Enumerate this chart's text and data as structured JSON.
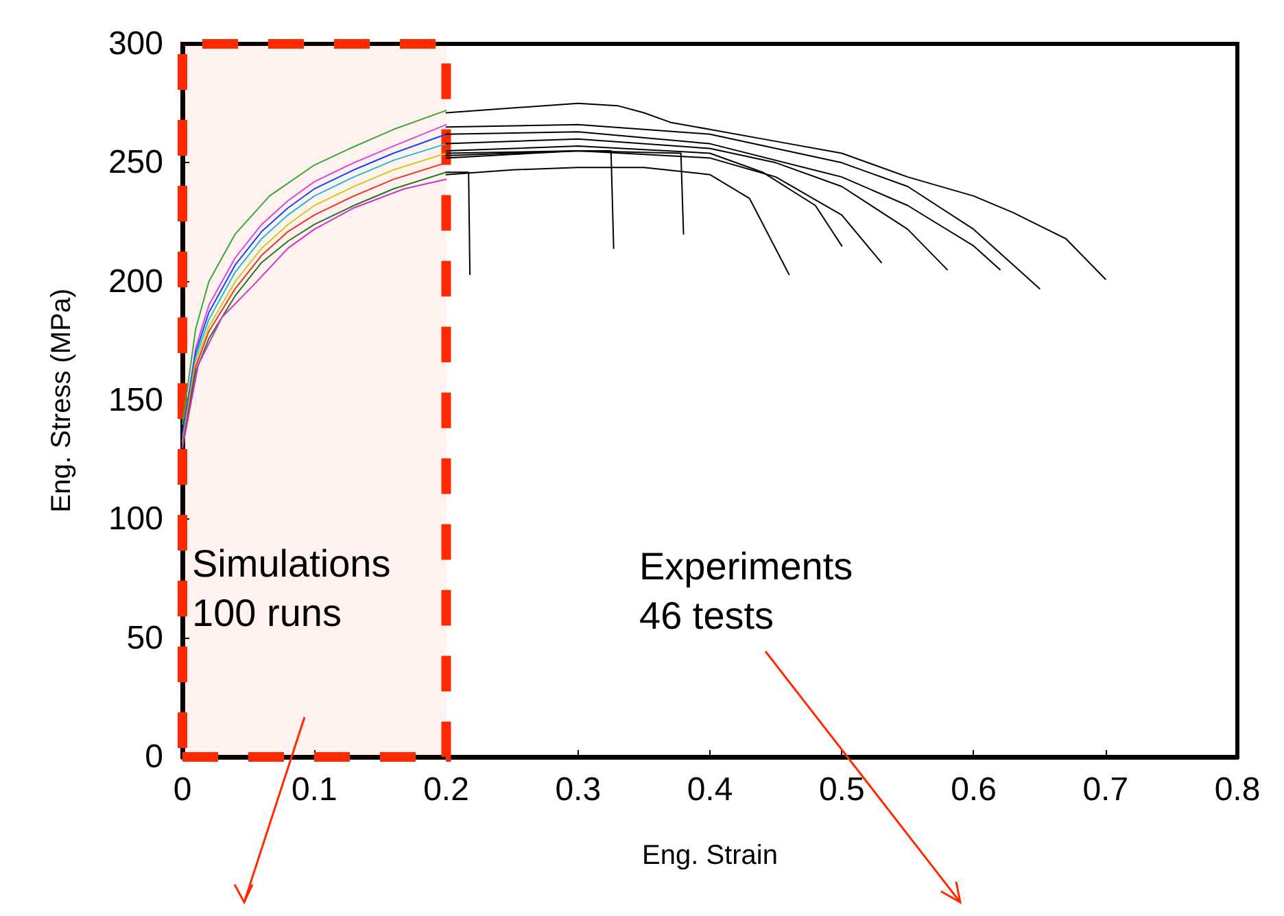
{
  "chart_data": {
    "type": "line",
    "xlabel": "Eng. Strain",
    "ylabel": "Eng. Stress (MPa)",
    "xlim": [
      0,
      0.8
    ],
    "xticks": [
      0,
      0.1,
      0.2,
      0.3,
      0.4,
      0.5,
      0.6,
      0.7,
      0.8
    ],
    "ylim": [
      0,
      300
    ],
    "yticks": [
      0,
      50,
      100,
      150,
      200,
      250,
      300
    ],
    "grid": false,
    "marker": "none",
    "line_style": "solid",
    "annotations": [
      "Simulations\n100 runs",
      "Experiments\n46 tests"
    ],
    "bands": [
      {
        "axis": "x",
        "from": 0,
        "to": 0.2,
        "color": "#ff2a00"
      }
    ],
    "series": [
      {
        "color": "#33aa33",
        "x": [
          0,
          0.01,
          0.02,
          0.04,
          0.066,
          0.1,
          0.127,
          0.16,
          0.2
        ],
        "values": [
          140,
          180,
          200,
          220,
          236,
          249,
          256,
          264,
          272
        ]
      },
      {
        "color": "#dd44dd",
        "x": [
          0,
          0.01,
          0.02,
          0.04,
          0.06,
          0.08,
          0.1,
          0.13,
          0.16,
          0.2
        ],
        "values": [
          135,
          172,
          190,
          210,
          224,
          234,
          242,
          250,
          257,
          266
        ]
      },
      {
        "color": "#1144ff",
        "x": [
          0,
          0.01,
          0.02,
          0.04,
          0.06,
          0.08,
          0.1,
          0.13,
          0.16,
          0.2
        ],
        "values": [
          135,
          170,
          187,
          207,
          221,
          231,
          239,
          247,
          254,
          262
        ]
      },
      {
        "color": "#22bbcc",
        "x": [
          0,
          0.01,
          0.02,
          0.04,
          0.06,
          0.08,
          0.1,
          0.13,
          0.16,
          0.2
        ],
        "values": [
          133,
          168,
          184,
          204,
          218,
          228,
          236,
          244,
          251,
          258
        ]
      },
      {
        "color": "#cccc22",
        "x": [
          0,
          0.01,
          0.02,
          0.04,
          0.06,
          0.08,
          0.1,
          0.13,
          0.16,
          0.2
        ],
        "values": [
          132,
          166,
          181,
          200,
          214,
          224,
          232,
          240,
          247,
          254
        ]
      },
      {
        "color": "#ee3322",
        "x": [
          0,
          0.01,
          0.02,
          0.04,
          0.06,
          0.08,
          0.1,
          0.13,
          0.16,
          0.2
        ],
        "values": [
          131,
          164,
          179,
          197,
          211,
          221,
          228,
          236,
          243,
          250
        ]
      },
      {
        "color": "#227722",
        "x": [
          0,
          0.01,
          0.02,
          0.04,
          0.06,
          0.08,
          0.1,
          0.13,
          0.16,
          0.2
        ],
        "values": [
          130,
          162,
          176,
          194,
          208,
          217,
          224,
          232,
          239,
          246
        ]
      },
      {
        "color": "#cc33cc",
        "x": [
          0,
          0.012,
          0.03,
          0.053,
          0.08,
          0.1,
          0.13,
          0.168,
          0.2
        ],
        "values": [
          130,
          165,
          185,
          198,
          214,
          222,
          231,
          239,
          243
        ]
      },
      {
        "color": "#000000",
        "x": [
          0.2,
          0.25,
          0.3,
          0.33,
          0.35,
          0.37,
          0.4,
          0.45,
          0.5,
          0.55,
          0.6,
          0.63,
          0.67,
          0.7
        ],
        "values": [
          271,
          273,
          275,
          274,
          271,
          267,
          264,
          259,
          254,
          244,
          236,
          229,
          218,
          201
        ]
      },
      {
        "color": "#000000",
        "x": [
          0.2,
          0.3,
          0.4,
          0.45,
          0.5,
          0.55,
          0.6,
          0.65
        ],
        "values": [
          265,
          266,
          262,
          256,
          250,
          240,
          222,
          197
        ]
      },
      {
        "color": "#000000",
        "x": [
          0.2,
          0.3,
          0.4,
          0.45,
          0.5,
          0.55,
          0.58
        ],
        "values": [
          258,
          260,
          256,
          250,
          240,
          222,
          205
        ]
      },
      {
        "color": "#000000",
        "x": [
          0.2,
          0.3,
          0.4,
          0.45,
          0.5,
          0.53
        ],
        "values": [
          252,
          255,
          252,
          244,
          228,
          208
        ]
      },
      {
        "color": "#000000",
        "x": [
          0.2,
          0.3,
          0.4,
          0.44,
          0.48,
          0.5
        ],
        "values": [
          255,
          257,
          254,
          246,
          232,
          215
        ]
      },
      {
        "color": "#000000",
        "x": [
          0.2,
          0.25,
          0.3,
          0.35,
          0.4,
          0.43,
          0.46
        ],
        "values": [
          245,
          247,
          248,
          248,
          245,
          235,
          203
        ]
      },
      {
        "color": "#000000",
        "x": [
          0.2,
          0.217,
          0.218
        ],
        "values": [
          246,
          246,
          203
        ]
      },
      {
        "color": "#000000",
        "x": [
          0.2,
          0.3,
          0.325,
          0.327
        ],
        "values": [
          254,
          255,
          255,
          214
        ]
      },
      {
        "color": "#000000",
        "x": [
          0.2,
          0.3,
          0.378,
          0.38
        ],
        "values": [
          253,
          255,
          254,
          220
        ]
      },
      {
        "color": "#000000",
        "x": [
          0.2,
          0.3,
          0.4,
          0.5,
          0.55,
          0.6,
          0.62
        ],
        "values": [
          262,
          263,
          258,
          244,
          232,
          215,
          205
        ]
      }
    ]
  }
}
